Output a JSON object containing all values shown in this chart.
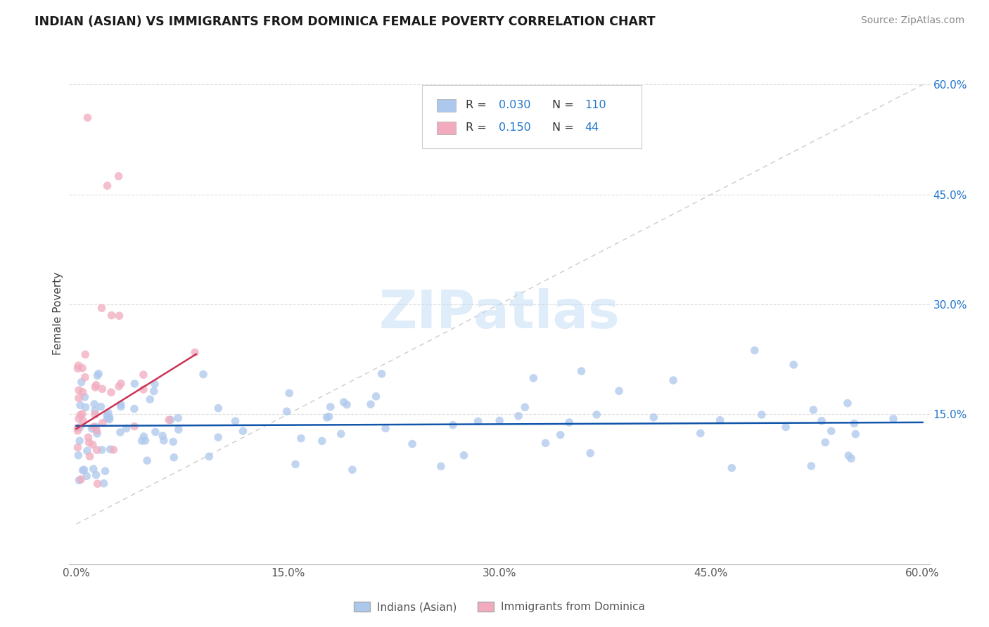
{
  "title": "INDIAN (ASIAN) VS IMMIGRANTS FROM DOMINICA FEMALE POVERTY CORRELATION CHART",
  "source": "Source: ZipAtlas.com",
  "ylabel": "Female Poverty",
  "xlim": [
    -0.005,
    0.605
  ],
  "ylim": [
    -0.055,
    0.63
  ],
  "xticks": [
    0.0,
    0.15,
    0.3,
    0.45,
    0.6
  ],
  "xticklabels": [
    "0.0%",
    "15.0%",
    "30.0%",
    "45.0%",
    "60.0%"
  ],
  "ytick_vals": [
    0.15,
    0.3,
    0.45,
    0.6
  ],
  "yticklabels": [
    "15.0%",
    "30.0%",
    "45.0%",
    "60.0%"
  ],
  "blue_R": 0.03,
  "blue_N": 110,
  "pink_R": 0.15,
  "pink_N": 44,
  "blue_color": "#adc8ed",
  "pink_color": "#f2abbe",
  "blue_line_color": "#1155aa",
  "pink_line_color": "#cc3355",
  "diagonal_color": "#cccccc",
  "legend_blue_label": "Indians (Asian)",
  "legend_pink_label": "Immigrants from Dominica"
}
